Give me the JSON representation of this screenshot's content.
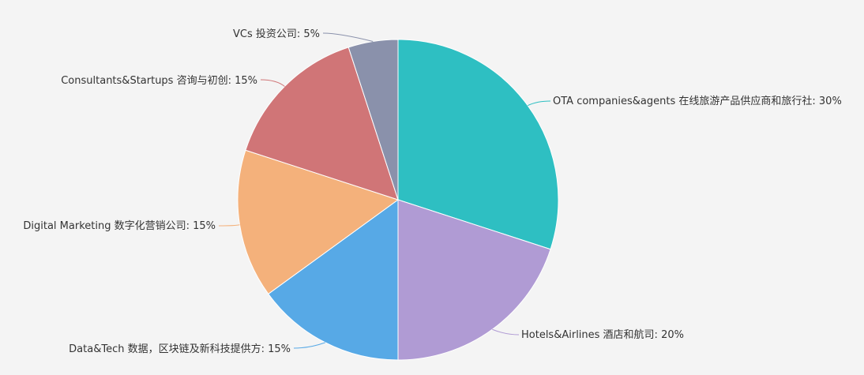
{
  "chart_data": {
    "type": "pie",
    "title": "",
    "slices": [
      {
        "label": "OTA companies&agents 在线旅游产品供应商和旅行社: 30%",
        "value": 30,
        "color": "#2ebfc2"
      },
      {
        "label": "Hotels&Airlines 酒店和航司: 20%",
        "value": 20,
        "color": "#b09bd4"
      },
      {
        "label": "Data&Tech 数据，区块链及新科技提供方: 15%",
        "value": 15,
        "color": "#57a9e6"
      },
      {
        "label": "Digital Marketing 数字化营销公司: 15%",
        "value": 15,
        "color": "#f4b17b"
      },
      {
        "label": "Consultants&Startups 咨询与初创: 15%",
        "value": 15,
        "color": "#d07577"
      },
      {
        "label": "VCs 投资公司: 5%",
        "value": 5,
        "color": "#8a91ab"
      }
    ]
  }
}
